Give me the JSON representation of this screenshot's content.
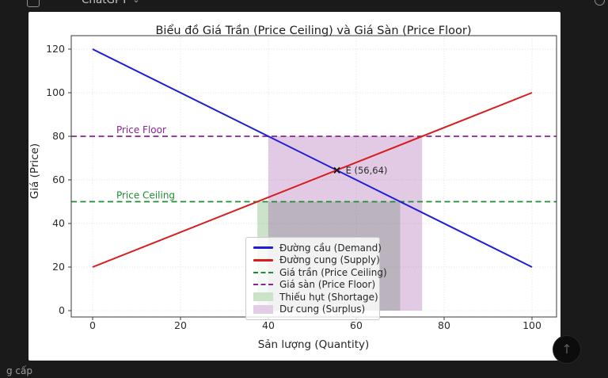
{
  "app": {
    "model_label": "ChatGPT",
    "upgrade_partial": "g cấp"
  },
  "icons": {
    "chevron_down": "⌄",
    "arrow_up": "↑"
  },
  "chart_data": {
    "type": "line",
    "title": "Biểu đồ Giá Trần (Price Ceiling) và Giá Sàn (Price Floor)",
    "xlabel": "Sản lượng (Quantity)",
    "ylabel": "Giá (Price)",
    "x_ticks": [
      0,
      20,
      40,
      60,
      80,
      100
    ],
    "y_ticks": [
      0,
      20,
      40,
      60,
      80,
      100,
      120
    ],
    "xlim": [
      -5,
      106
    ],
    "ylim": [
      -3,
      127
    ],
    "grid": true,
    "legend_position": "lower center",
    "series": [
      {
        "name": "demand",
        "label": "Đường cầu (Demand)",
        "color": "#1e1ed7",
        "style": "solid",
        "points": [
          [
            0,
            120
          ],
          [
            100,
            20
          ]
        ]
      },
      {
        "name": "supply",
        "label": "Đường cung (Supply)",
        "color": "#d71e1e",
        "style": "solid",
        "points": [
          [
            0,
            20
          ],
          [
            100,
            100
          ]
        ]
      }
    ],
    "hlines": [
      {
        "name": "price-ceiling",
        "label": "Giá trần (Price Ceiling)",
        "annotation": "Price Ceiling",
        "y": 50,
        "color": "#1e8c32",
        "style": "dashed",
        "annotation_x": 5.4
      },
      {
        "name": "price-floor",
        "label": "Giá sàn (Price Floor)",
        "annotation": "Price Floor",
        "y": 80,
        "color": "#8c2396",
        "style": "dashed",
        "annotation_x": 5.4
      }
    ],
    "regions": [
      {
        "name": "shortage",
        "label": "Thiếu hụt (Shortage)",
        "x": [
          37.5,
          70
        ],
        "y": [
          0,
          50
        ],
        "color": "#2e8b2e",
        "opacity": 0.25
      },
      {
        "name": "surplus",
        "label": "Dư cung (Surplus)",
        "x": [
          40,
          75
        ],
        "y": [
          0,
          80
        ],
        "color": "#8c2d96",
        "opacity": 0.25
      }
    ],
    "equilibrium": {
      "label": "E (56,64)",
      "x": 55.6,
      "y": 64.4,
      "marker": "x",
      "marker_color": "#111111"
    },
    "legend": {
      "items": [
        {
          "label": "Đường cầu (Demand)",
          "swatch": "line",
          "color": "#1e1ed7"
        },
        {
          "label": "Đường cung (Supply)",
          "swatch": "line",
          "color": "#d71e1e"
        },
        {
          "label": "Giá trần (Price Ceiling)",
          "swatch": "dashed",
          "color": "#1e8c32"
        },
        {
          "label": "Giá sàn (Price Floor)",
          "swatch": "dashed",
          "color": "#8c2396"
        },
        {
          "label": "Thiếu hụt (Shortage)",
          "swatch": "patch",
          "color": "#cbe3c6"
        },
        {
          "label": "Dư cung (Surplus)",
          "swatch": "patch",
          "color": "#e2cde4"
        }
      ]
    }
  }
}
